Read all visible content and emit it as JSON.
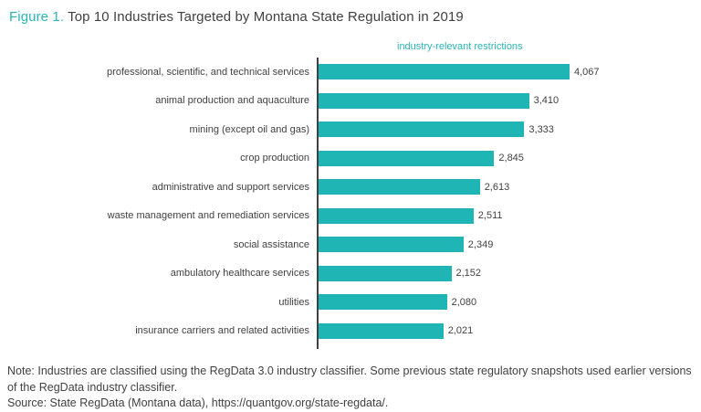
{
  "title": {
    "prefix": "Figure 1.",
    "text": " Top 10 Industries Targeted by Montana State Regulation in 2019"
  },
  "chart_data": {
    "type": "bar",
    "orientation": "horizontal",
    "series_label": "industry-relevant restrictions",
    "categories": [
      "professional, scientific, and technical services",
      "animal production and aquaculture",
      "mining (except oil and gas)",
      "crop production",
      "administrative and support services",
      "waste management and remediation services",
      "social assistance",
      "ambulatory healthcare services",
      "utilities",
      "insurance carriers and related activities"
    ],
    "values": [
      4067,
      3410,
      3333,
      2845,
      2613,
      2511,
      2349,
      2152,
      2080,
      2021
    ],
    "value_labels": [
      "4,067",
      "3,410",
      "3,333",
      "2,845",
      "2,613",
      "2,511",
      "2,349",
      "2,152",
      "2,080",
      "2,021"
    ],
    "xlim": [
      0,
      4067
    ],
    "bar_color": "#1FB5B5",
    "grid": false,
    "legend_position": "none",
    "title": "Top 10 Industries Targeted by Montana State Regulation in 2019"
  },
  "notes": {
    "note": "Note: Industries are classified using the RegData 3.0 industry classifier. Some previous state regulatory snapshots used earlier versions of the RegData industry classifier.",
    "source": "Source: State RegData (Montana data), https://quantgov.org/state-regdata/."
  },
  "colors": {
    "accent": "#1FB5B5",
    "text": "#414042"
  }
}
